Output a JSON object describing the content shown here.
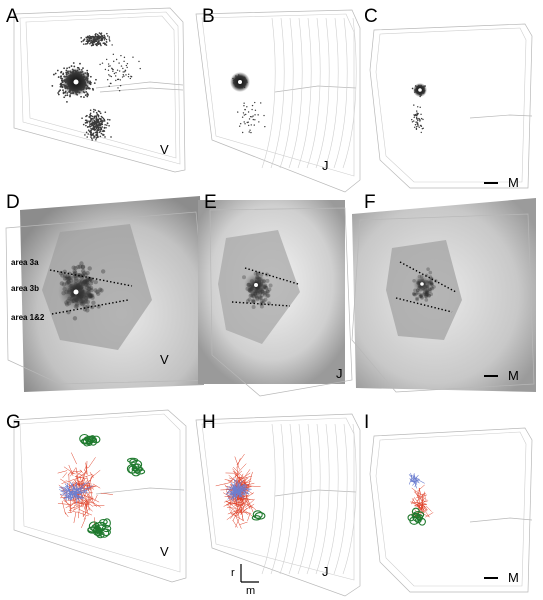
{
  "panels": {
    "A": {
      "label": "A",
      "animal": "V"
    },
    "B": {
      "label": "B",
      "animal": "J"
    },
    "C": {
      "label": "C",
      "animal": "M"
    },
    "D": {
      "label": "D",
      "animal": "V",
      "area_labels": [
        "area 3a",
        "area 3b",
        "area 1&2"
      ]
    },
    "E": {
      "label": "E",
      "animal": "J"
    },
    "F": {
      "label": "F",
      "animal": "M"
    },
    "G": {
      "label": "G",
      "animal": "V"
    },
    "H": {
      "label": "H",
      "animal": "J"
    },
    "I": {
      "label": "I",
      "animal": "M"
    }
  },
  "axes": {
    "rostral": "r",
    "medial": "m"
  },
  "colors": {
    "cells": "#3a3a3a",
    "injection_site": "#ffffff",
    "red_lines": "#e0442c",
    "blue_lines": "#6d7fd0",
    "green_contours": "#1f7a2e",
    "outline": "#b8b8b8"
  }
}
